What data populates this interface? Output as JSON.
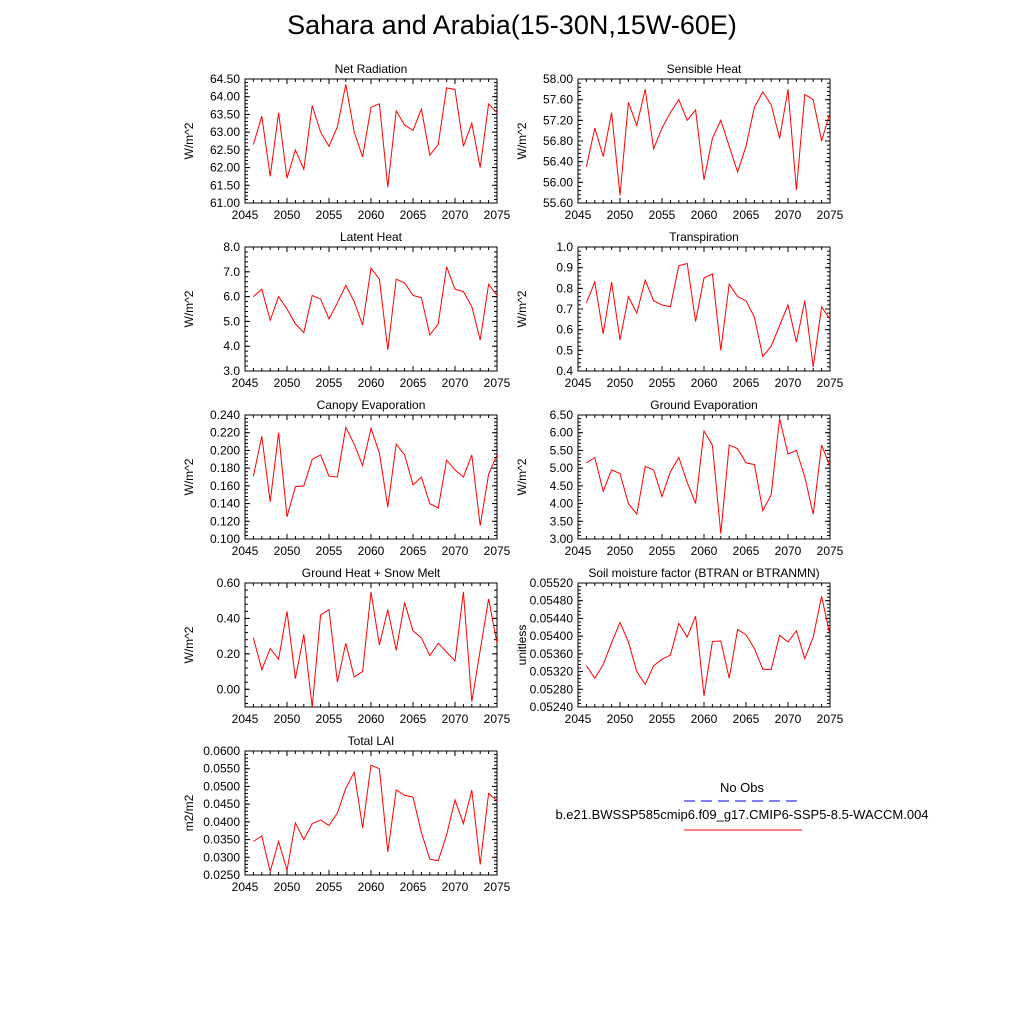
{
  "main_title": "Sahara and Arabia(15-30N,15W-60E)",
  "legend": {
    "obs_label": "No Obs",
    "obs_color": "#0000ff",
    "case_label": "b.e21.BWSSP585cmip6.f09_g17.CMIP6-SSP5-8.5-WACCM.004",
    "case_color": "#ff0000"
  },
  "chart_data": [
    {
      "type": "line",
      "title": "Net Radiation",
      "ylabel": "W/m^2",
      "xlim": [
        2045,
        2075
      ],
      "ylim": [
        61.0,
        64.5
      ],
      "xticks": [
        2045,
        2050,
        2055,
        2060,
        2065,
        2070,
        2075
      ],
      "yticks": [
        "61.00",
        "61.50",
        "62.00",
        "62.50",
        "63.00",
        "63.50",
        "64.00",
        "64.50"
      ],
      "x_start": 2046,
      "values": [
        62.65,
        63.45,
        61.75,
        63.55,
        61.7,
        62.5,
        61.95,
        63.75,
        63.0,
        62.6,
        63.15,
        64.35,
        63.0,
        62.3,
        63.7,
        63.8,
        61.45,
        63.6,
        63.2,
        63.05,
        63.65,
        62.35,
        62.65,
        64.25,
        64.2,
        62.6,
        63.25,
        62.0,
        63.8,
        63.55
      ]
    },
    {
      "type": "line",
      "title": "Sensible Heat",
      "ylabel": "W/m^2",
      "xlim": [
        2045,
        2075
      ],
      "ylim": [
        55.6,
        58.0
      ],
      "xticks": [
        2045,
        2050,
        2055,
        2060,
        2065,
        2070,
        2075
      ],
      "yticks": [
        "55.60",
        "56.00",
        "56.40",
        "56.80",
        "57.20",
        "57.60",
        "58.00"
      ],
      "x_start": 2046,
      "values": [
        56.3,
        57.05,
        56.5,
        57.35,
        55.75,
        57.55,
        57.1,
        57.8,
        56.65,
        57.05,
        57.35,
        57.6,
        57.2,
        57.4,
        56.05,
        56.85,
        57.2,
        56.7,
        56.2,
        56.7,
        57.45,
        57.75,
        57.5,
        56.85,
        57.8,
        55.85,
        57.7,
        57.6,
        56.8,
        57.35
      ]
    },
    {
      "type": "line",
      "title": "Latent Heat",
      "ylabel": "W/m^2",
      "xlim": [
        2045,
        2075
      ],
      "ylim": [
        3.0,
        8.0
      ],
      "xticks": [
        2045,
        2050,
        2055,
        2060,
        2065,
        2070,
        2075
      ],
      "yticks": [
        "3.0",
        "4.0",
        "5.0",
        "6.0",
        "7.0",
        "8.0"
      ],
      "x_start": 2046,
      "values": [
        6.0,
        6.3,
        5.05,
        6.0,
        5.5,
        4.9,
        4.55,
        6.05,
        5.9,
        5.1,
        5.75,
        6.45,
        5.8,
        4.85,
        7.15,
        6.7,
        3.85,
        6.7,
        6.55,
        6.05,
        5.95,
        4.45,
        4.9,
        7.2,
        6.3,
        6.2,
        5.6,
        4.25,
        6.5,
        6.05
      ]
    },
    {
      "type": "line",
      "title": "Transpiration",
      "ylabel": "W/m^2",
      "xlim": [
        2045,
        2075
      ],
      "ylim": [
        0.4,
        1.0
      ],
      "xticks": [
        2045,
        2050,
        2055,
        2060,
        2065,
        2070,
        2075
      ],
      "yticks": [
        "0.4",
        "0.5",
        "0.6",
        "0.7",
        "0.8",
        "0.9",
        "1.0"
      ],
      "x_start": 2046,
      "values": [
        0.73,
        0.83,
        0.58,
        0.83,
        0.55,
        0.76,
        0.68,
        0.84,
        0.74,
        0.72,
        0.71,
        0.91,
        0.92,
        0.64,
        0.85,
        0.87,
        0.5,
        0.82,
        0.76,
        0.74,
        0.66,
        0.47,
        0.52,
        0.62,
        0.72,
        0.54,
        0.74,
        0.42,
        0.71,
        0.65
      ]
    },
    {
      "type": "line",
      "title": "Canopy Evaporation",
      "ylabel": "W/m^2",
      "xlim": [
        2045,
        2075
      ],
      "ylim": [
        0.1,
        0.24
      ],
      "xticks": [
        2045,
        2050,
        2055,
        2060,
        2065,
        2070,
        2075
      ],
      "yticks": [
        "0.100",
        "0.120",
        "0.140",
        "0.160",
        "0.180",
        "0.200",
        "0.220",
        "0.240"
      ],
      "x_start": 2046,
      "values": [
        0.171,
        0.216,
        0.142,
        0.22,
        0.125,
        0.159,
        0.16,
        0.19,
        0.195,
        0.171,
        0.17,
        0.226,
        0.207,
        0.183,
        0.225,
        0.197,
        0.136,
        0.207,
        0.195,
        0.161,
        0.17,
        0.14,
        0.135,
        0.189,
        0.178,
        0.17,
        0.195,
        0.115,
        0.173,
        0.195
      ]
    },
    {
      "type": "line",
      "title": "Ground Evaporation",
      "ylabel": "W/m^2",
      "xlim": [
        2045,
        2075
      ],
      "ylim": [
        3.0,
        6.5
      ],
      "xticks": [
        2045,
        2050,
        2055,
        2060,
        2065,
        2070,
        2075
      ],
      "yticks": [
        "3.00",
        "3.50",
        "4.00",
        "4.50",
        "5.00",
        "5.50",
        "6.00",
        "6.50"
      ],
      "x_start": 2046,
      "values": [
        5.15,
        5.3,
        4.35,
        4.95,
        4.85,
        4.0,
        3.7,
        5.05,
        4.95,
        4.2,
        4.9,
        5.3,
        4.6,
        4.0,
        6.05,
        5.65,
        3.15,
        5.65,
        5.55,
        5.15,
        5.1,
        3.8,
        4.25,
        6.4,
        5.4,
        5.5,
        4.75,
        3.7,
        5.65,
        5.05
      ]
    },
    {
      "type": "line",
      "title": "Ground Heat + Snow Melt",
      "ylabel": "W/m^2",
      "xlim": [
        2045,
        2075
      ],
      "ylim": [
        -0.1,
        0.6
      ],
      "xticks": [
        2045,
        2050,
        2055,
        2060,
        2065,
        2070,
        2075
      ],
      "yticks": [
        "0.00",
        "0.20",
        "0.40",
        "0.60"
      ],
      "x_start": 2046,
      "values": [
        0.29,
        0.11,
        0.23,
        0.17,
        0.44,
        0.06,
        0.31,
        -0.1,
        0.42,
        0.45,
        0.04,
        0.26,
        0.07,
        0.1,
        0.55,
        0.25,
        0.45,
        0.22,
        0.49,
        0.33,
        0.29,
        0.19,
        0.26,
        0.21,
        0.16,
        0.55,
        -0.07,
        0.22,
        0.51,
        0.26
      ]
    },
    {
      "type": "line",
      "title": "Soil moisture factor (BTRAN or BTRANMN)",
      "ylabel": "unitless",
      "xlim": [
        2045,
        2075
      ],
      "ylim": [
        0.0524,
        0.0552
      ],
      "xticks": [
        2045,
        2050,
        2055,
        2060,
        2065,
        2070,
        2075
      ],
      "yticks": [
        "0.05240",
        "0.05280",
        "0.05320",
        "0.05360",
        "0.05400",
        "0.05440",
        "0.05480",
        "0.05520"
      ],
      "x_start": 2046,
      "values": [
        0.05333,
        0.05305,
        0.05336,
        0.05385,
        0.05431,
        0.05387,
        0.0532,
        0.05291,
        0.05333,
        0.05348,
        0.05357,
        0.05429,
        0.05398,
        0.05445,
        0.05265,
        0.05388,
        0.05389,
        0.05305,
        0.05415,
        0.05403,
        0.05372,
        0.05325,
        0.05325,
        0.05402,
        0.05387,
        0.05412,
        0.05349,
        0.05398,
        0.0549,
        0.05402
      ]
    },
    {
      "type": "line",
      "title": "Total LAI",
      "ylabel": "m2/m2",
      "xlim": [
        2045,
        2075
      ],
      "ylim": [
        0.025,
        0.06
      ],
      "xticks": [
        2045,
        2050,
        2055,
        2060,
        2065,
        2070,
        2075
      ],
      "yticks": [
        "0.0250",
        "0.0300",
        "0.0350",
        "0.0400",
        "0.0450",
        "0.0500",
        "0.0550",
        "0.0600"
      ],
      "x_start": 2046,
      "values": [
        0.0345,
        0.036,
        0.026,
        0.0345,
        0.0263,
        0.0397,
        0.035,
        0.0395,
        0.0405,
        0.039,
        0.0425,
        0.0495,
        0.054,
        0.0383,
        0.056,
        0.055,
        0.0315,
        0.049,
        0.0475,
        0.047,
        0.037,
        0.0295,
        0.029,
        0.0363,
        0.0462,
        0.0395,
        0.049,
        0.028,
        0.048,
        0.046
      ]
    }
  ]
}
